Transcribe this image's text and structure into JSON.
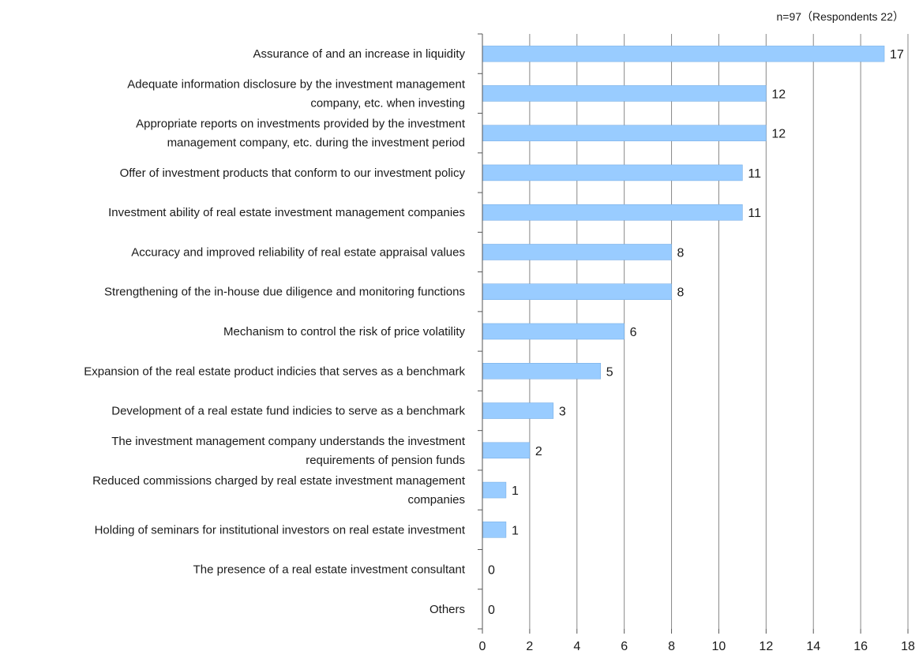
{
  "chart_data": {
    "type": "bar",
    "orientation": "horizontal",
    "note": "n=97（Respondents 22）",
    "categories": [
      [
        "Assurance of and an increase in liquidity"
      ],
      [
        "Adequate information disclosure by the investment management",
        "company, etc. when investing"
      ],
      [
        "Appropriate reports on investments provided by the investment",
        "management company, etc. during the investment period"
      ],
      [
        "Offer of investment products that conform to our investment policy"
      ],
      [
        "Investment ability of real estate investment management companies"
      ],
      [
        "Accuracy and improved reliability of real estate appraisal values"
      ],
      [
        "Strengthening of the in-house due diligence and monitoring functions"
      ],
      [
        "Mechanism to control the risk of price volatility"
      ],
      [
        "Expansion of the real estate product indicies that serves as a benchmark"
      ],
      [
        "Development of a real estate fund indicies to serve as a benchmark"
      ],
      [
        "The investment management company understands the investment",
        "requirements of pension funds"
      ],
      [
        "Reduced commissions charged by real estate investment management",
        "companies"
      ],
      [
        "Holding of seminars for institutional investors on real estate investment"
      ],
      [
        "The presence of a real estate investment consultant"
      ],
      [
        "Others"
      ]
    ],
    "values": [
      17,
      12,
      12,
      11,
      11,
      8,
      8,
      6,
      5,
      3,
      2,
      1,
      1,
      0,
      0
    ],
    "xlim": [
      0,
      18
    ],
    "xticks": [
      0,
      2,
      4,
      6,
      8,
      10,
      12,
      14,
      16,
      18
    ],
    "grid": true,
    "bar_color": "#99ccff",
    "bar_border_color": "#6fa8e0",
    "grid_color": "#888888"
  }
}
